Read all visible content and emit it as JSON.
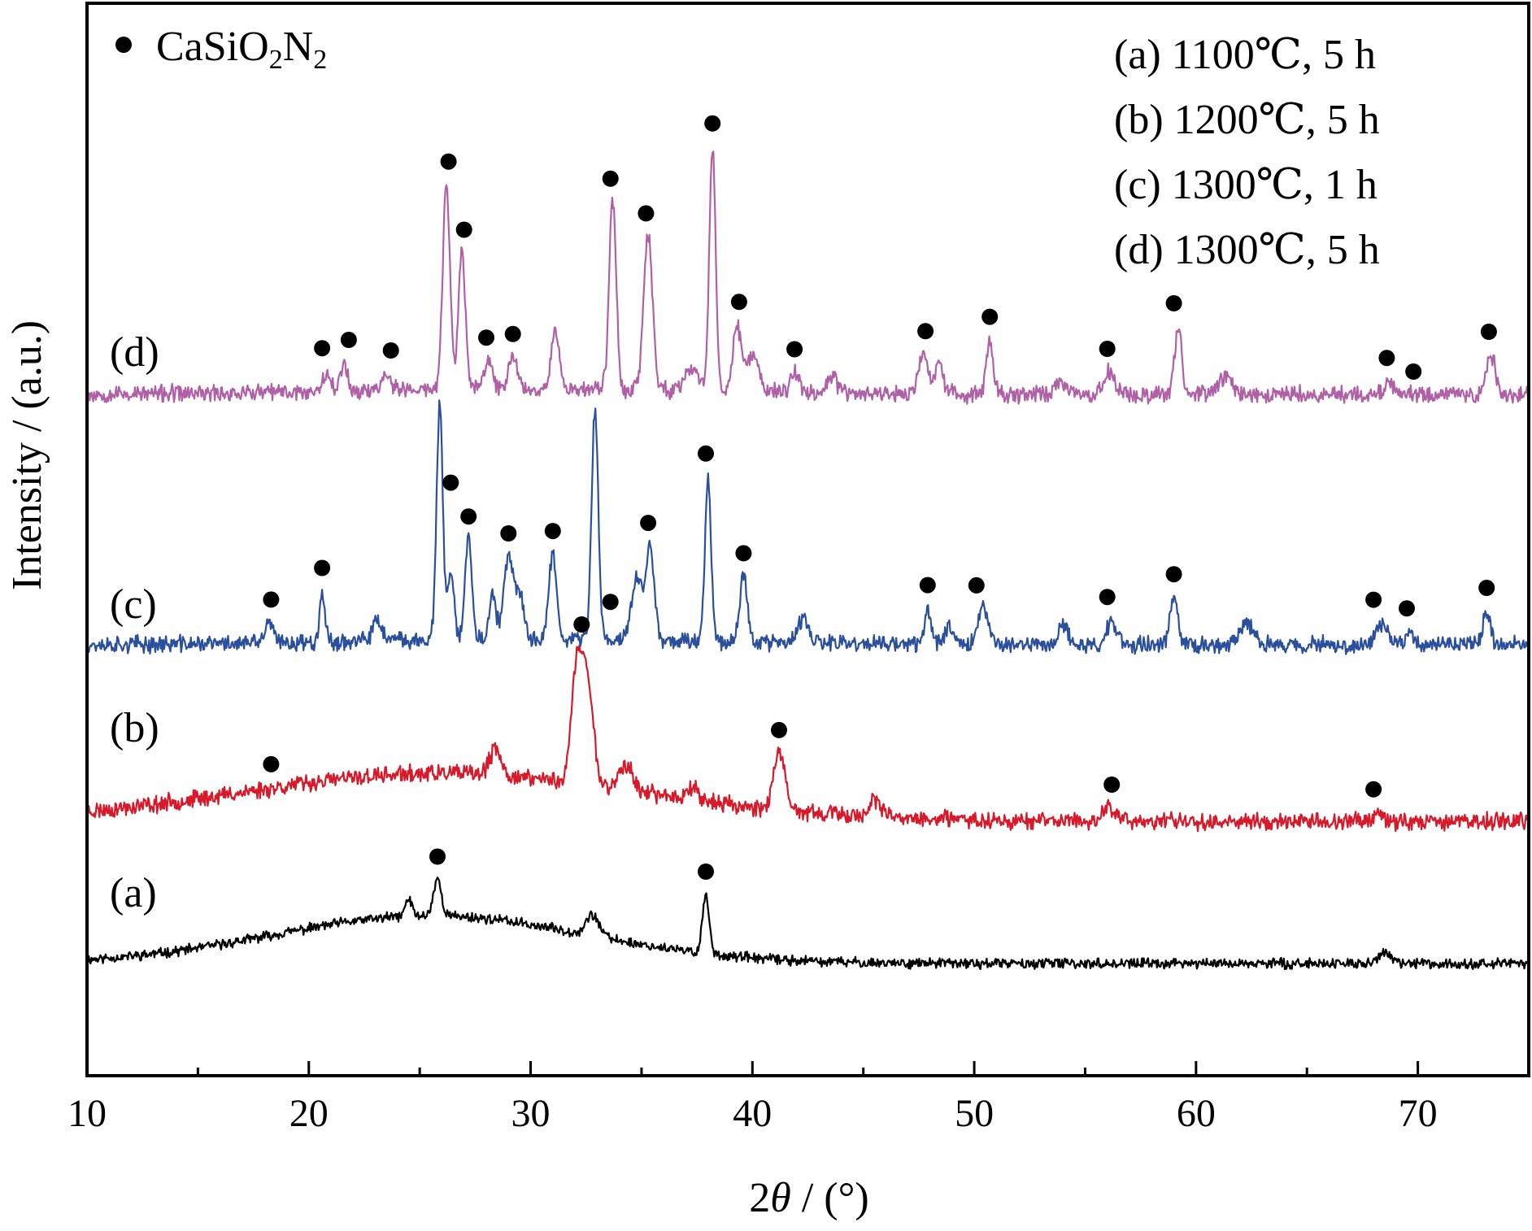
{
  "chart_data": {
    "type": "line",
    "xlabel": "2θ / (°)",
    "xlabel_prefix": "2",
    "xlabel_theta": "θ",
    "xlabel_suffix": " / (°)",
    "ylabel": "Intensity / (a.u.)",
    "xlim": [
      10,
      75
    ],
    "x_ticks": [
      10,
      20,
      30,
      40,
      50,
      60,
      70
    ],
    "x_minor_ticks": [
      15,
      25,
      35,
      45,
      55,
      65
    ],
    "y_ticks": [],
    "grid": false,
    "marker_legend": {
      "symbol": "●",
      "label_parts": [
        "CaSiO",
        "2",
        "N",
        "2"
      ]
    },
    "condition_legend": [
      "(a) 1100℃, 5 h",
      "(b) 1200℃, 5 h",
      "(c) 1300℃, 1 h",
      "(d) 1300℃, 5 h"
    ],
    "series": [
      {
        "id": "a",
        "label": "(a)",
        "color": "#000000",
        "baseline": 0.0,
        "noise": 0.035,
        "seed": 11,
        "hump": {
          "center": 25.5,
          "width": 7,
          "height": 0.42
        },
        "peaks": [
          {
            "x": 24.5,
            "h": 0.15,
            "w": 0.15
          },
          {
            "x": 25.8,
            "h": 0.32,
            "w": 0.18
          },
          {
            "x": 32.8,
            "h": 0.18,
            "w": 0.3
          },
          {
            "x": 37.9,
            "h": 0.52,
            "w": 0.15
          },
          {
            "x": 68.5,
            "h": 0.1,
            "w": 0.25
          }
        ],
        "markers": [
          25.8,
          37.9
        ]
      },
      {
        "id": "b",
        "label": "(b)",
        "color": "#d7192a",
        "baseline": 1.25,
        "noise": 0.06,
        "seed": 23,
        "hump": {
          "center": 26.0,
          "width": 9,
          "height": 0.42
        },
        "peaks": [
          {
            "x": 28.4,
            "h": 0.22,
            "w": 0.25
          },
          {
            "x": 32.1,
            "h": 1.05,
            "w": 0.25
          },
          {
            "x": 32.6,
            "h": 0.82,
            "w": 0.25
          },
          {
            "x": 34.3,
            "h": 0.22,
            "w": 0.3
          },
          {
            "x": 37.3,
            "h": 0.12,
            "w": 0.25
          },
          {
            "x": 41.2,
            "h": 0.5,
            "w": 0.25
          },
          {
            "x": 45.5,
            "h": 0.15,
            "w": 0.25
          },
          {
            "x": 56.1,
            "h": 0.12,
            "w": 0.3
          },
          {
            "x": 68.2,
            "h": 0.08,
            "w": 0.25
          }
        ],
        "markers": [
          18.3,
          32.3,
          41.2,
          56.2,
          68.0
        ]
      },
      {
        "id": "c",
        "label": "(c)",
        "color": "#2a4f9c",
        "baseline": 2.8,
        "noise": 0.06,
        "seed": 37,
        "hump": {
          "center": 30,
          "width": 8,
          "height": 0.05
        },
        "peaks": [
          {
            "x": 18.2,
            "h": 0.18,
            "w": 0.18
          },
          {
            "x": 20.6,
            "h": 0.45,
            "w": 0.12
          },
          {
            "x": 23.1,
            "h": 0.18,
            "w": 0.2
          },
          {
            "x": 25.9,
            "h": 2.05,
            "w": 0.14
          },
          {
            "x": 26.4,
            "h": 0.58,
            "w": 0.14
          },
          {
            "x": 27.2,
            "h": 0.88,
            "w": 0.16
          },
          {
            "x": 28.3,
            "h": 0.38,
            "w": 0.15
          },
          {
            "x": 29.0,
            "h": 0.72,
            "w": 0.2
          },
          {
            "x": 29.5,
            "h": 0.42,
            "w": 0.18
          },
          {
            "x": 31.0,
            "h": 0.75,
            "w": 0.18
          },
          {
            "x": 32.9,
            "h": 2.0,
            "w": 0.15
          },
          {
            "x": 34.8,
            "h": 0.55,
            "w": 0.25
          },
          {
            "x": 35.4,
            "h": 0.8,
            "w": 0.18
          },
          {
            "x": 38.0,
            "h": 1.45,
            "w": 0.14
          },
          {
            "x": 39.6,
            "h": 0.58,
            "w": 0.18
          },
          {
            "x": 42.3,
            "h": 0.2,
            "w": 0.25
          },
          {
            "x": 47.9,
            "h": 0.32,
            "w": 0.15
          },
          {
            "x": 48.9,
            "h": 0.18,
            "w": 0.2
          },
          {
            "x": 50.4,
            "h": 0.32,
            "w": 0.25
          },
          {
            "x": 54.0,
            "h": 0.15,
            "w": 0.25
          },
          {
            "x": 56.2,
            "h": 0.22,
            "w": 0.2
          },
          {
            "x": 59.0,
            "h": 0.42,
            "w": 0.18
          },
          {
            "x": 62.3,
            "h": 0.18,
            "w": 0.3
          },
          {
            "x": 68.4,
            "h": 0.2,
            "w": 0.25
          },
          {
            "x": 69.6,
            "h": 0.12,
            "w": 0.2
          },
          {
            "x": 73.1,
            "h": 0.3,
            "w": 0.18
          }
        ],
        "markers": [
          18.3,
          20.6,
          26.4,
          27.2,
          29.0,
          31.0,
          33.6,
          35.3,
          37.9,
          39.6,
          47.9,
          50.1,
          56.0,
          59.0,
          68.0,
          69.5,
          73.1
        ]
      },
      {
        "id": "d",
        "label": "(d)",
        "color": "#b060a6",
        "baseline": 5.0,
        "noise": 0.06,
        "seed": 53,
        "hump": {
          "center": 30,
          "width": 8,
          "height": 0.05
        },
        "peaks": [
          {
            "x": 20.8,
            "h": 0.18,
            "w": 0.18
          },
          {
            "x": 21.6,
            "h": 0.25,
            "w": 0.15
          },
          {
            "x": 23.5,
            "h": 0.15,
            "w": 0.2
          },
          {
            "x": 26.2,
            "h": 1.8,
            "w": 0.16
          },
          {
            "x": 26.9,
            "h": 1.2,
            "w": 0.16
          },
          {
            "x": 28.1,
            "h": 0.25,
            "w": 0.18
          },
          {
            "x": 29.2,
            "h": 0.28,
            "w": 0.2
          },
          {
            "x": 31.1,
            "h": 0.52,
            "w": 0.18
          },
          {
            "x": 33.7,
            "h": 1.65,
            "w": 0.16
          },
          {
            "x": 35.3,
            "h": 1.35,
            "w": 0.2
          },
          {
            "x": 37.3,
            "h": 0.22,
            "w": 0.25
          },
          {
            "x": 38.2,
            "h": 2.15,
            "w": 0.14
          },
          {
            "x": 39.3,
            "h": 0.58,
            "w": 0.18
          },
          {
            "x": 40.0,
            "h": 0.35,
            "w": 0.25
          },
          {
            "x": 41.9,
            "h": 0.18,
            "w": 0.2
          },
          {
            "x": 43.6,
            "h": 0.15,
            "w": 0.2
          },
          {
            "x": 47.7,
            "h": 0.35,
            "w": 0.2
          },
          {
            "x": 48.4,
            "h": 0.25,
            "w": 0.2
          },
          {
            "x": 50.7,
            "h": 0.48,
            "w": 0.16
          },
          {
            "x": 53.9,
            "h": 0.12,
            "w": 0.25
          },
          {
            "x": 56.1,
            "h": 0.2,
            "w": 0.25
          },
          {
            "x": 59.2,
            "h": 0.6,
            "w": 0.16
          },
          {
            "x": 61.3,
            "h": 0.15,
            "w": 0.3
          },
          {
            "x": 68.7,
            "h": 0.12,
            "w": 0.2
          },
          {
            "x": 73.3,
            "h": 0.35,
            "w": 0.18
          }
        ],
        "markers": [
          20.6,
          21.8,
          23.7,
          26.3,
          27.0,
          28.0,
          29.2,
          33.6,
          35.2,
          38.2,
          39.4,
          41.9,
          47.8,
          50.7,
          56.0,
          59.0,
          68.6,
          69.8,
          73.2
        ]
      }
    ]
  }
}
